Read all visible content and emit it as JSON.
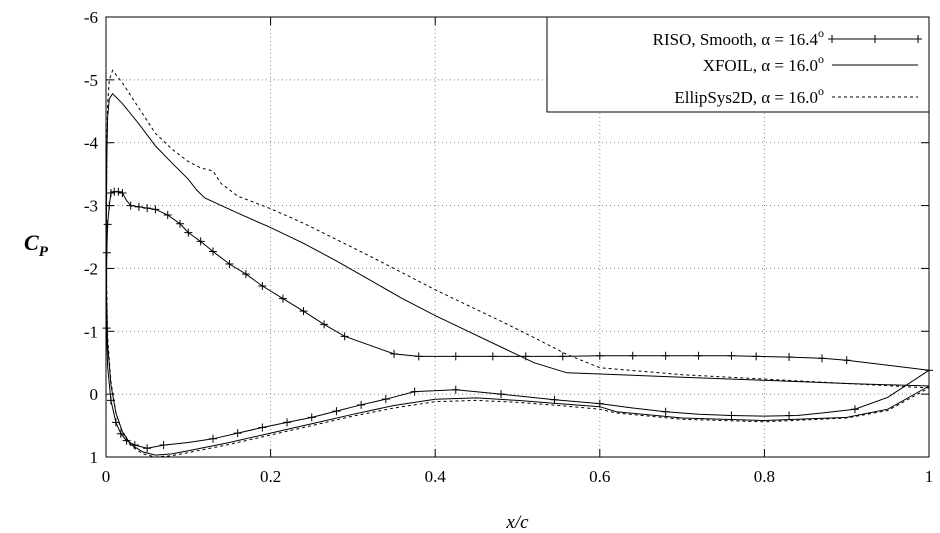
{
  "chart_data": {
    "type": "line",
    "title": "",
    "xlabel": "x/c",
    "ylabel": "C",
    "ylabel_sub": "P",
    "xlim": [
      0,
      1
    ],
    "ylim": [
      1,
      -6
    ],
    "y_inverted": true,
    "grid": true,
    "legend_position": "top-right",
    "x_ticks": [
      0,
      0.2,
      0.4,
      0.6,
      0.8,
      1
    ],
    "x_tick_labels": [
      "0",
      "0.2",
      "0.4",
      "0.6",
      "0.8",
      "1"
    ],
    "y_ticks": [
      -6,
      -5,
      -4,
      -3,
      -2,
      -1,
      0,
      1
    ],
    "y_tick_labels": [
      "-6",
      "-5",
      "-4",
      "-3",
      "-2",
      "-1",
      "0",
      "1"
    ],
    "series": [
      {
        "name": "RISO, Smooth, α = 16.4",
        "name_main": "RISO, Smooth, α = 16.4",
        "name_sup": "o",
        "style": "solid-plus",
        "points": [
          [
            1.0,
            -0.38
          ],
          [
            0.9,
            -0.54
          ],
          [
            0.87,
            -0.57
          ],
          [
            0.83,
            -0.59
          ],
          [
            0.79,
            -0.6
          ],
          [
            0.76,
            -0.61
          ],
          [
            0.72,
            -0.61
          ],
          [
            0.68,
            -0.61
          ],
          [
            0.64,
            -0.61
          ],
          [
            0.6,
            -0.61
          ],
          [
            0.555,
            -0.6
          ],
          [
            0.51,
            -0.6
          ],
          [
            0.47,
            -0.6
          ],
          [
            0.425,
            -0.6
          ],
          [
            0.38,
            -0.6
          ],
          [
            0.35,
            -0.64
          ],
          [
            0.29,
            -0.92
          ],
          [
            0.265,
            -1.11
          ],
          [
            0.24,
            -1.32
          ],
          [
            0.215,
            -1.52
          ],
          [
            0.19,
            -1.72
          ],
          [
            0.17,
            -1.91
          ],
          [
            0.15,
            -2.07
          ],
          [
            0.13,
            -2.27
          ],
          [
            0.115,
            -2.43
          ],
          [
            0.1,
            -2.57
          ],
          [
            0.09,
            -2.71
          ],
          [
            0.075,
            -2.85
          ],
          [
            0.06,
            -2.94
          ],
          [
            0.05,
            -2.96
          ],
          [
            0.04,
            -2.98
          ],
          [
            0.03,
            -3.0
          ],
          [
            0.025,
            -3.08
          ],
          [
            0.02,
            -3.2
          ],
          [
            0.015,
            -3.22
          ],
          [
            0.01,
            -3.22
          ],
          [
            0.006,
            -3.2
          ],
          [
            0.004,
            -3.0
          ],
          [
            0.002,
            -2.7
          ],
          [
            0.001,
            -2.25
          ],
          [
            0.0005,
            -1.6
          ],
          [
            0.0007,
            -1.05
          ],
          [
            0.002,
            -0.45
          ],
          [
            0.006,
            0.1
          ],
          [
            0.012,
            0.45
          ],
          [
            0.018,
            0.63
          ],
          [
            0.025,
            0.74
          ],
          [
            0.035,
            0.81
          ],
          [
            0.05,
            0.86
          ],
          [
            0.07,
            0.81
          ],
          [
            0.1,
            0.77
          ],
          [
            0.13,
            0.71
          ],
          [
            0.16,
            0.62
          ],
          [
            0.19,
            0.53
          ],
          [
            0.22,
            0.45
          ],
          [
            0.25,
            0.37
          ],
          [
            0.28,
            0.27
          ],
          [
            0.31,
            0.17
          ],
          [
            0.34,
            0.08
          ],
          [
            0.375,
            -0.04
          ],
          [
            0.425,
            -0.07
          ],
          [
            0.48,
            0.0
          ],
          [
            0.545,
            0.09
          ],
          [
            0.6,
            0.15
          ],
          [
            0.64,
            0.22
          ],
          [
            0.68,
            0.28
          ],
          [
            0.72,
            0.32
          ],
          [
            0.76,
            0.34
          ],
          [
            0.8,
            0.35
          ],
          [
            0.84,
            0.34
          ],
          [
            0.87,
            0.3
          ],
          [
            0.91,
            0.24
          ],
          [
            0.95,
            0.05
          ],
          [
            1.0,
            -0.38
          ]
        ],
        "markers": [
          [
            0.001,
            -2.25
          ],
          [
            0.002,
            -2.7
          ],
          [
            0.004,
            -3.0
          ],
          [
            0.006,
            -3.2
          ],
          [
            0.01,
            -3.22
          ],
          [
            0.015,
            -3.22
          ],
          [
            0.02,
            -3.2
          ],
          [
            0.03,
            -3.0
          ],
          [
            0.04,
            -2.98
          ],
          [
            0.05,
            -2.96
          ],
          [
            0.06,
            -2.94
          ],
          [
            0.075,
            -2.85
          ],
          [
            0.09,
            -2.71
          ],
          [
            0.1,
            -2.57
          ],
          [
            0.115,
            -2.43
          ],
          [
            0.13,
            -2.27
          ],
          [
            0.15,
            -2.07
          ],
          [
            0.17,
            -1.91
          ],
          [
            0.19,
            -1.72
          ],
          [
            0.215,
            -1.52
          ],
          [
            0.24,
            -1.32
          ],
          [
            0.265,
            -1.11
          ],
          [
            0.29,
            -0.92
          ],
          [
            0.35,
            -0.64
          ],
          [
            0.38,
            -0.6
          ],
          [
            0.425,
            -0.6
          ],
          [
            0.47,
            -0.6
          ],
          [
            0.51,
            -0.6
          ],
          [
            0.555,
            -0.6
          ],
          [
            0.6,
            -0.61
          ],
          [
            0.64,
            -0.61
          ],
          [
            0.68,
            -0.61
          ],
          [
            0.72,
            -0.61
          ],
          [
            0.76,
            -0.61
          ],
          [
            0.79,
            -0.6
          ],
          [
            0.83,
            -0.59
          ],
          [
            0.87,
            -0.57
          ],
          [
            0.9,
            -0.54
          ],
          [
            1.0,
            -0.38
          ],
          [
            0.0007,
            -1.05
          ],
          [
            0.006,
            0.1
          ],
          [
            0.012,
            0.45
          ],
          [
            0.018,
            0.63
          ],
          [
            0.025,
            0.74
          ],
          [
            0.035,
            0.81
          ],
          [
            0.05,
            0.86
          ],
          [
            0.07,
            0.81
          ],
          [
            0.13,
            0.71
          ],
          [
            0.16,
            0.62
          ],
          [
            0.19,
            0.53
          ],
          [
            0.22,
            0.45
          ],
          [
            0.25,
            0.37
          ],
          [
            0.28,
            0.27
          ],
          [
            0.31,
            0.17
          ],
          [
            0.34,
            0.08
          ],
          [
            0.375,
            -0.04
          ],
          [
            0.425,
            -0.07
          ],
          [
            0.48,
            0.0
          ],
          [
            0.545,
            0.09
          ],
          [
            0.6,
            0.15
          ],
          [
            0.68,
            0.28
          ],
          [
            0.76,
            0.34
          ],
          [
            0.83,
            0.34
          ],
          [
            0.91,
            0.24
          ]
        ]
      },
      {
        "name": "XFOIL, α = 16.0",
        "name_main": "XFOIL, α = 16.0",
        "name_sup": "o",
        "style": "solid",
        "points": [
          [
            1.0,
            -0.13
          ],
          [
            0.9,
            -0.17
          ],
          [
            0.8,
            -0.22
          ],
          [
            0.7,
            -0.27
          ],
          [
            0.6,
            -0.32
          ],
          [
            0.56,
            -0.34
          ],
          [
            0.52,
            -0.5
          ],
          [
            0.48,
            -0.75
          ],
          [
            0.44,
            -1.0
          ],
          [
            0.4,
            -1.25
          ],
          [
            0.36,
            -1.52
          ],
          [
            0.32,
            -1.82
          ],
          [
            0.28,
            -2.12
          ],
          [
            0.24,
            -2.4
          ],
          [
            0.2,
            -2.65
          ],
          [
            0.16,
            -2.88
          ],
          [
            0.12,
            -3.12
          ],
          [
            0.11,
            -3.25
          ],
          [
            0.1,
            -3.42
          ],
          [
            0.08,
            -3.68
          ],
          [
            0.06,
            -3.95
          ],
          [
            0.04,
            -4.3
          ],
          [
            0.02,
            -4.62
          ],
          [
            0.008,
            -4.78
          ],
          [
            0.004,
            -4.7
          ],
          [
            0.002,
            -4.4
          ],
          [
            0.001,
            -3.7
          ],
          [
            0.0005,
            -2.7
          ],
          [
            0.0007,
            -1.6
          ],
          [
            0.002,
            -0.8
          ],
          [
            0.006,
            -0.15
          ],
          [
            0.012,
            0.3
          ],
          [
            0.02,
            0.6
          ],
          [
            0.03,
            0.8
          ],
          [
            0.045,
            0.92
          ],
          [
            0.06,
            0.97
          ],
          [
            0.08,
            0.95
          ],
          [
            0.1,
            0.9
          ],
          [
            0.15,
            0.77
          ],
          [
            0.2,
            0.62
          ],
          [
            0.25,
            0.47
          ],
          [
            0.3,
            0.32
          ],
          [
            0.35,
            0.18
          ],
          [
            0.4,
            0.08
          ],
          [
            0.45,
            0.06
          ],
          [
            0.5,
            0.1
          ],
          [
            0.55,
            0.15
          ],
          [
            0.6,
            0.2
          ],
          [
            0.62,
            0.28
          ],
          [
            0.7,
            0.38
          ],
          [
            0.8,
            0.42
          ],
          [
            0.9,
            0.37
          ],
          [
            0.95,
            0.24
          ],
          [
            1.0,
            -0.13
          ]
        ]
      },
      {
        "name": "EllipSys2D, α = 16.0",
        "name_main": "EllipSys2D, α = 16.0",
        "name_sup": "o",
        "style": "dotted",
        "points": [
          [
            1.0,
            -0.1
          ],
          [
            0.9,
            -0.17
          ],
          [
            0.8,
            -0.24
          ],
          [
            0.7,
            -0.31
          ],
          [
            0.6,
            -0.42
          ],
          [
            0.56,
            -0.63
          ],
          [
            0.52,
            -0.9
          ],
          [
            0.48,
            -1.16
          ],
          [
            0.44,
            -1.41
          ],
          [
            0.4,
            -1.66
          ],
          [
            0.36,
            -1.93
          ],
          [
            0.32,
            -2.2
          ],
          [
            0.28,
            -2.46
          ],
          [
            0.24,
            -2.72
          ],
          [
            0.2,
            -2.95
          ],
          [
            0.16,
            -3.15
          ],
          [
            0.14,
            -3.35
          ],
          [
            0.13,
            -3.55
          ],
          [
            0.115,
            -3.6
          ],
          [
            0.1,
            -3.7
          ],
          [
            0.08,
            -3.9
          ],
          [
            0.06,
            -4.15
          ],
          [
            0.04,
            -4.55
          ],
          [
            0.02,
            -4.95
          ],
          [
            0.008,
            -5.15
          ],
          [
            0.004,
            -5.0
          ],
          [
            0.002,
            -4.6
          ],
          [
            0.001,
            -3.9
          ],
          [
            0.0005,
            -2.9
          ],
          [
            0.0007,
            -1.8
          ],
          [
            0.002,
            -0.9
          ],
          [
            0.006,
            -0.2
          ],
          [
            0.012,
            0.3
          ],
          [
            0.02,
            0.62
          ],
          [
            0.03,
            0.82
          ],
          [
            0.045,
            0.95
          ],
          [
            0.06,
            1.0
          ],
          [
            0.08,
            0.98
          ],
          [
            0.1,
            0.93
          ],
          [
            0.15,
            0.8
          ],
          [
            0.2,
            0.65
          ],
          [
            0.25,
            0.5
          ],
          [
            0.3,
            0.35
          ],
          [
            0.35,
            0.22
          ],
          [
            0.4,
            0.12
          ],
          [
            0.45,
            0.1
          ],
          [
            0.5,
            0.13
          ],
          [
            0.55,
            0.18
          ],
          [
            0.6,
            0.24
          ],
          [
            0.62,
            0.3
          ],
          [
            0.7,
            0.4
          ],
          [
            0.8,
            0.44
          ],
          [
            0.9,
            0.38
          ],
          [
            0.95,
            0.26
          ],
          [
            1.0,
            -0.1
          ]
        ]
      }
    ]
  }
}
